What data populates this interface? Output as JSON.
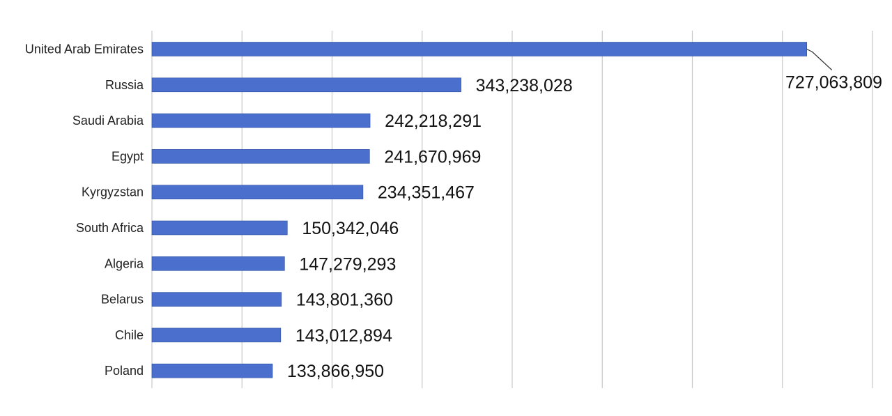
{
  "chart_data": {
    "type": "bar",
    "orientation": "horizontal",
    "categories": [
      "United Arab Emirates",
      "Russia",
      "Saudi Arabia",
      "Egypt",
      "Kyrgyzstan",
      "South Africa",
      "Algeria",
      "Belarus",
      "Chile",
      "Poland"
    ],
    "values": [
      727063809,
      343238028,
      242218291,
      241670969,
      234351467,
      150342046,
      147279293,
      143801360,
      143012894,
      133866950
    ],
    "value_labels": [
      "727,063,809",
      "343,238,028",
      "242,218,291",
      "241,670,969",
      "234,351,467",
      "150,342,046",
      "147,279,293",
      "143,801,360",
      "143,012,894",
      "133,866,950"
    ],
    "xlim": [
      0,
      800000000
    ],
    "grid": true,
    "legend": "none",
    "bar_color": "#4a6fcc",
    "grid_color": "#c8c8c8"
  }
}
